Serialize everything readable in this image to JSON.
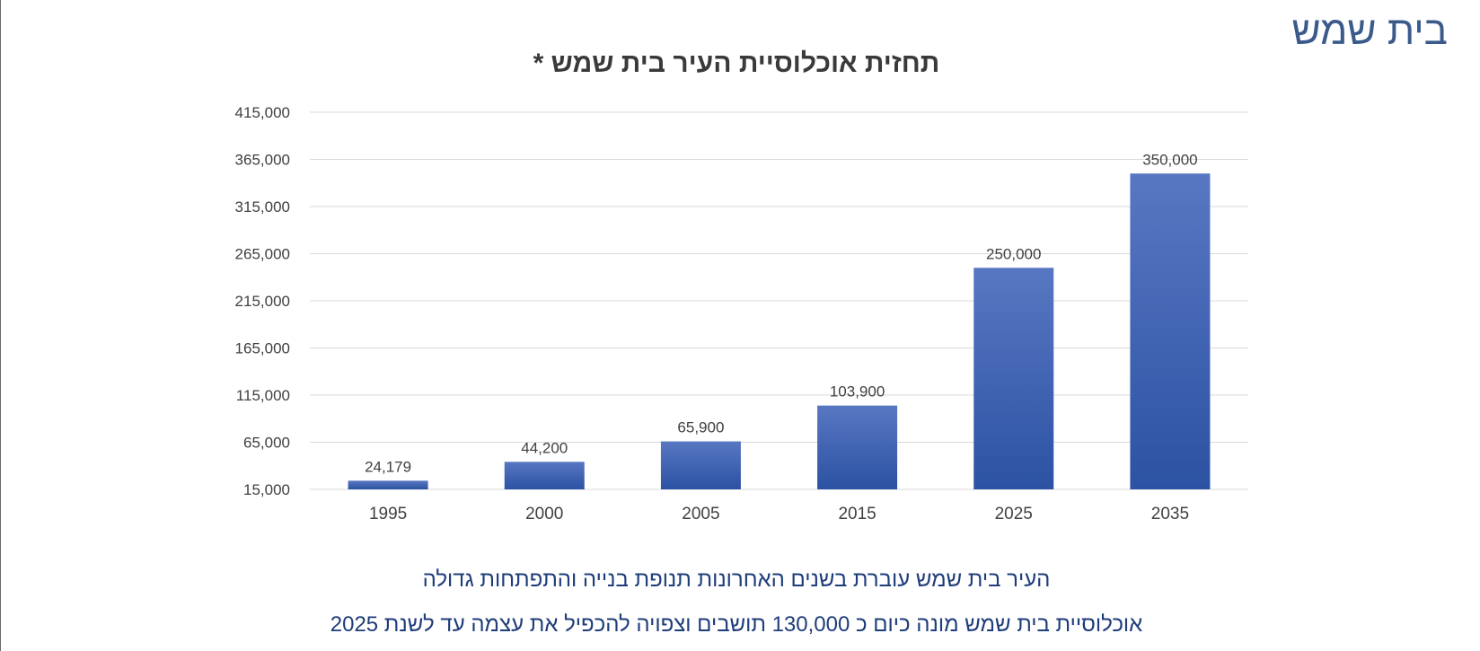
{
  "slide": {
    "title": "בית שמש"
  },
  "captions": {
    "line1": "העיר בית שמש עוברת בשנים האחרונות תנופת בנייה והתפתחות גדולה",
    "line2": "אוכלוסיית בית שמש מונה כיום כ 130,000 תושבים וצפויה להכפיל את עצמה עד לשנת 2025"
  },
  "colors": {
    "bar_top": "#5877c2",
    "bar_bottom": "#2c52a3",
    "grid": "#d9d9d9",
    "axis_text": "#404040",
    "title_text": "#3b5a8c",
    "caption_text": "#1f3d7a"
  },
  "chart_data": {
    "type": "bar",
    "title": "תחזית אוכלוסיית העיר בית שמש *",
    "xlabel": "",
    "ylabel": "",
    "categories": [
      "1995",
      "2000",
      "2005",
      "2015",
      "2025",
      "2035"
    ],
    "values": [
      24179,
      44200,
      65900,
      103900,
      250000,
      350000
    ],
    "value_labels": [
      "24,179",
      "44,200",
      "65,900",
      "103,900",
      "250,000",
      "350,000"
    ],
    "ylim": [
      15000,
      415000
    ],
    "yticks": [
      15000,
      65000,
      115000,
      165000,
      215000,
      265000,
      315000,
      365000,
      415000
    ],
    "ytick_labels": [
      "15,000",
      "65,000",
      "115,000",
      "165,000",
      "215,000",
      "265,000",
      "315,000",
      "365,000",
      "415,000"
    ],
    "grid": true,
    "legend": false
  }
}
